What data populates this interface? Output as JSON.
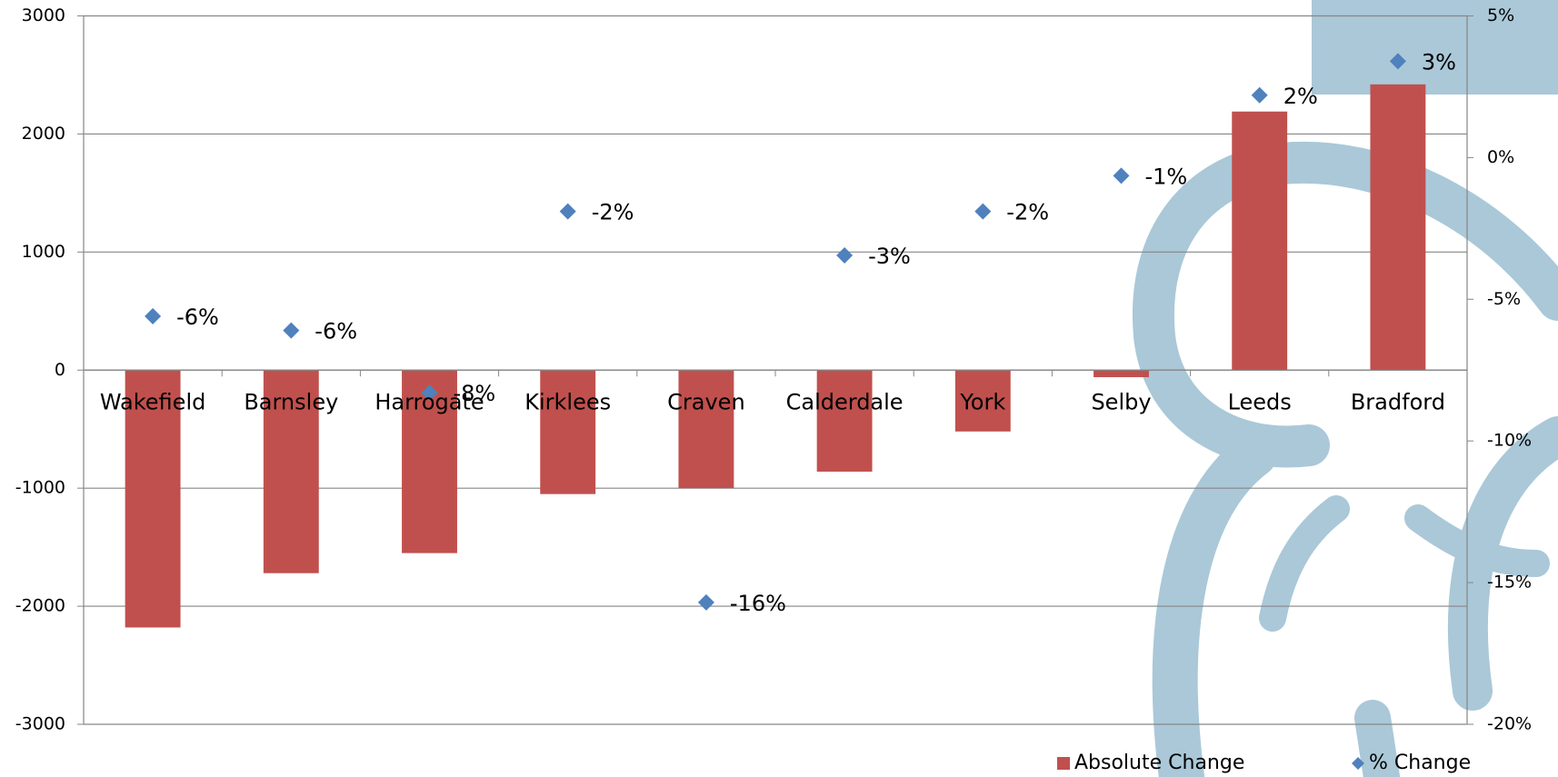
{
  "chart_data": {
    "type": "bar",
    "categories": [
      "Wakefield",
      "Barnsley",
      "Harrogate",
      "Kirklees",
      "Craven",
      "Calderdale",
      "York",
      "Selby",
      "Leeds",
      "Bradford"
    ],
    "series": [
      {
        "name": "Absolute Change",
        "type": "bar",
        "color": "#c0504d",
        "axis": "y",
        "values": [
          -2180,
          -1720,
          -1550,
          -1050,
          -1000,
          -860,
          -520,
          -60,
          2190,
          2420
        ]
      },
      {
        "name": "% Change",
        "type": "scatter",
        "color": "#4f81bd",
        "axis": "y2",
        "values": [
          -5.6,
          -6.1,
          -8.3,
          -1.9,
          -15.7,
          -3.45,
          -1.9,
          -0.64,
          2.2,
          3.4
        ],
        "value_labels": [
          "-6%",
          "-6%",
          "-8%",
          "-2%",
          "-16%",
          "-3%",
          "-2%",
          "-1%",
          "2%",
          "3%"
        ]
      }
    ],
    "ylim": [
      -3000,
      3000
    ],
    "yticks": [
      -3000,
      -2000,
      -1000,
      0,
      1000,
      2000,
      3000
    ],
    "y2lim": [
      -20,
      5
    ],
    "y2ticks": [
      {
        "value": -20,
        "label": "-20%"
      },
      {
        "value": -15,
        "label": "-15%"
      },
      {
        "value": -10,
        "label": "-10%"
      },
      {
        "value": -5,
        "label": "-5%"
      },
      {
        "value": 0,
        "label": "0%"
      },
      {
        "value": 5,
        "label": "5%"
      }
    ],
    "grid": true,
    "legend": "bottom-right"
  }
}
